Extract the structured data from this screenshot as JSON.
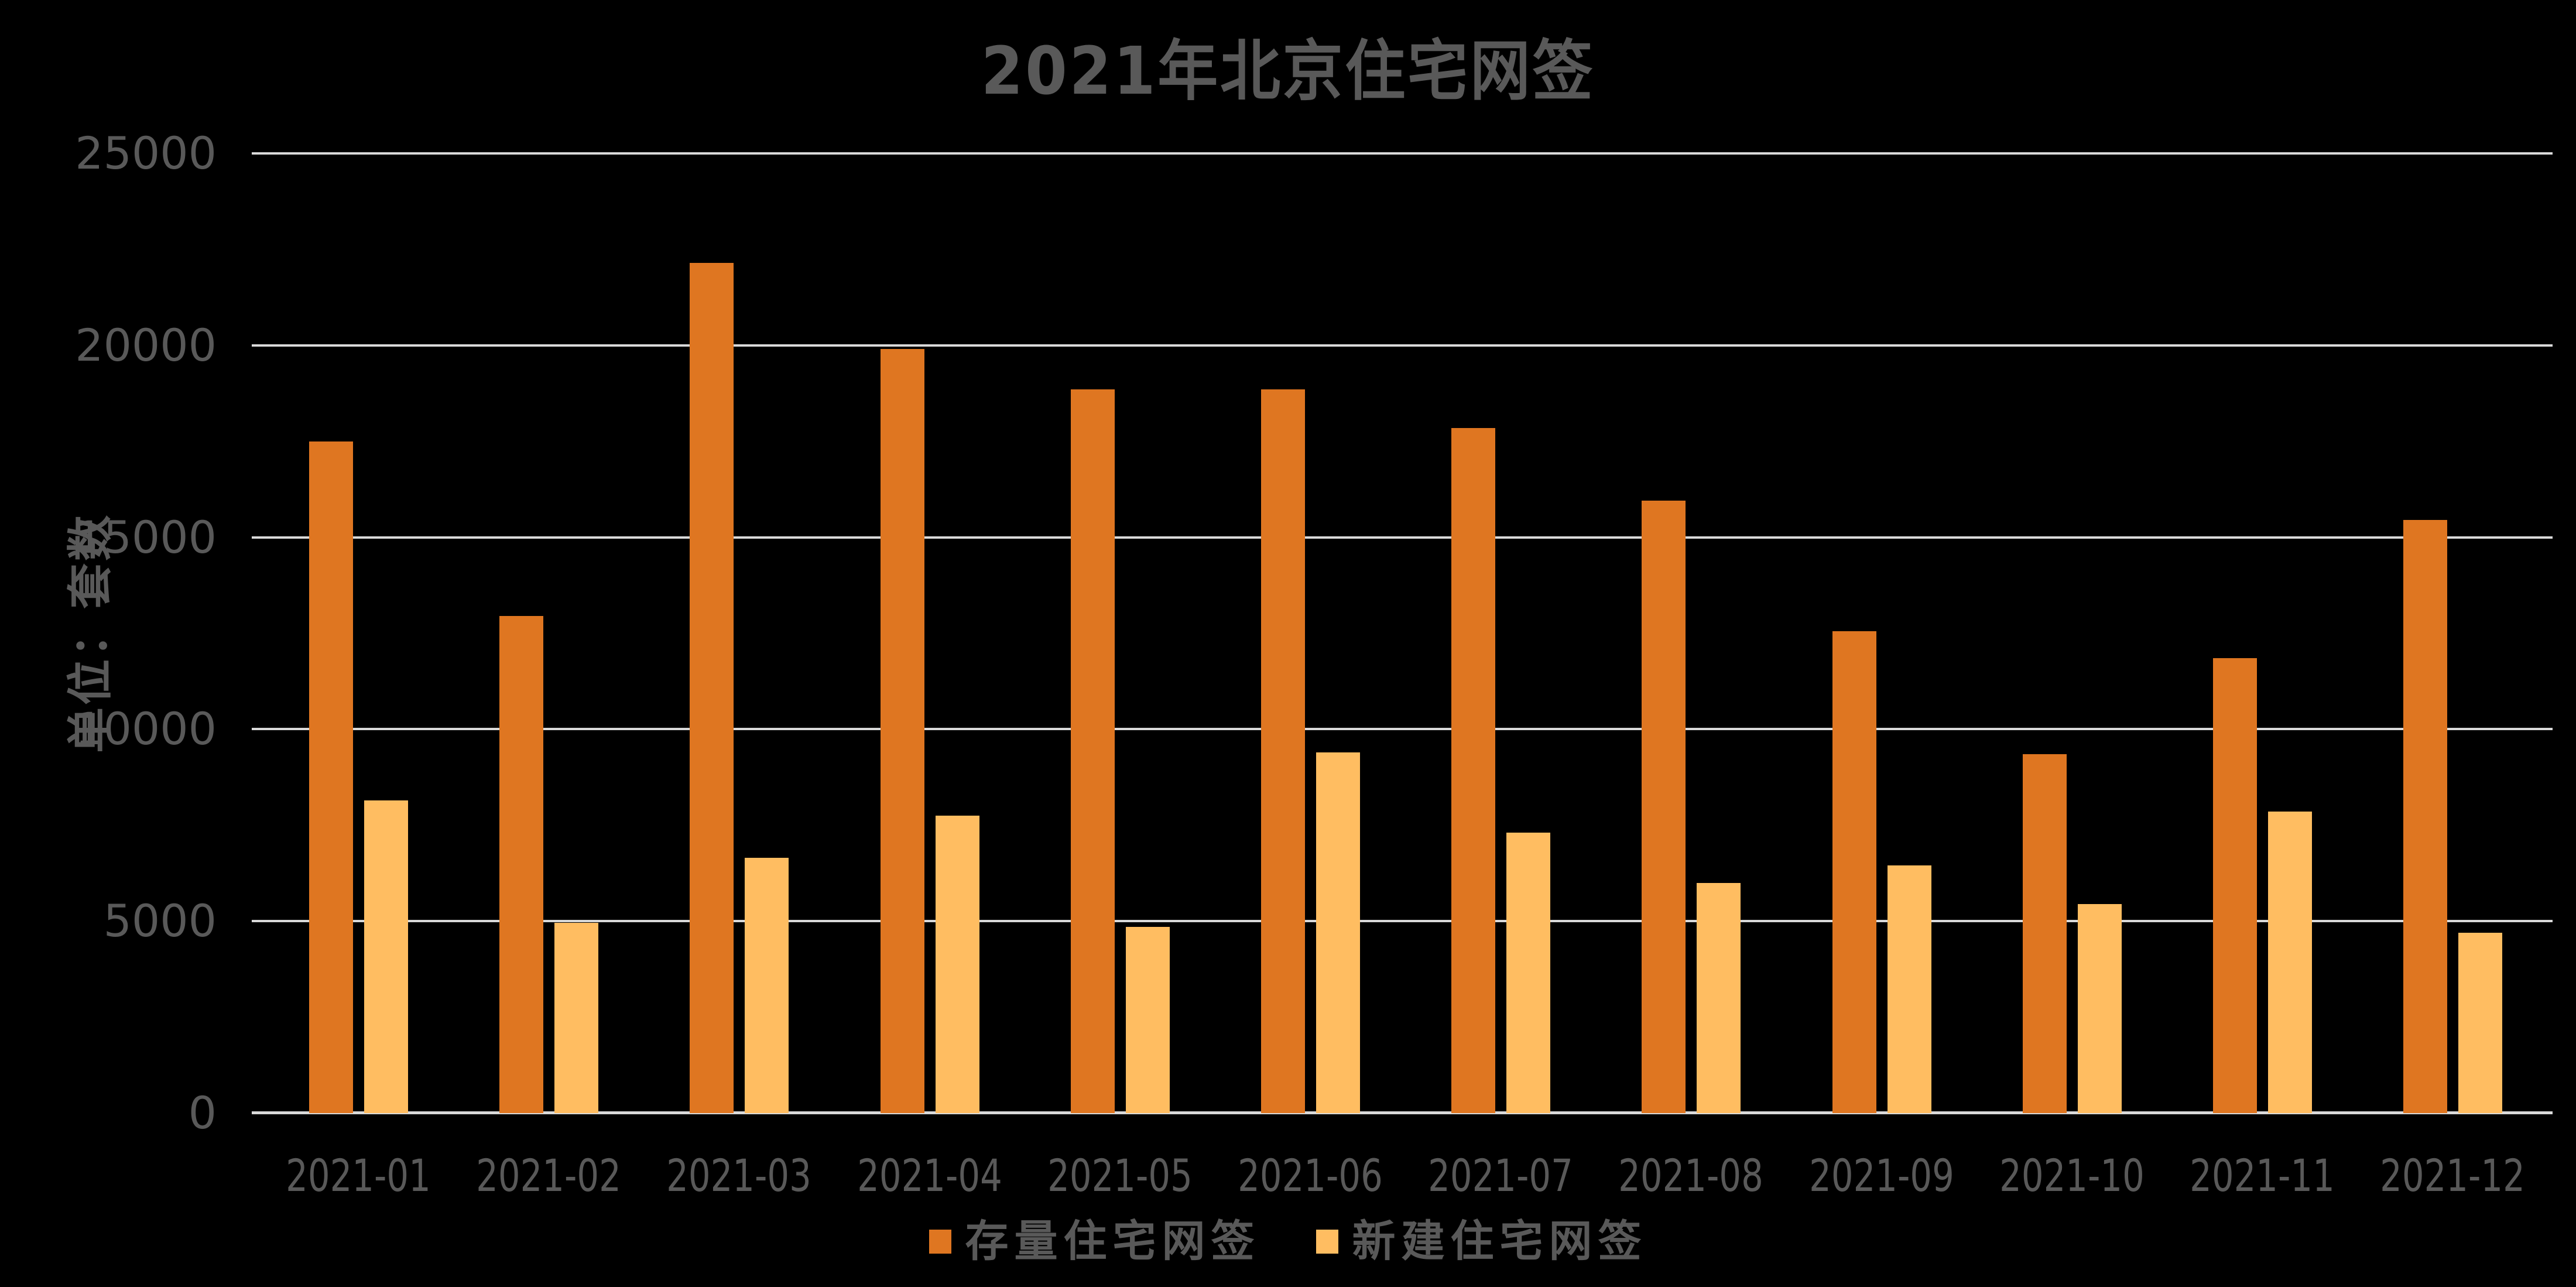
{
  "title": "2021年北京住宅网签",
  "colors": {
    "background": "#000000",
    "text": "#595959",
    "gridline": "#D9D9D9",
    "series_existing": "#DF7621",
    "series_new": "#FFBD61"
  },
  "chart_data": {
    "type": "bar",
    "title": "2021年北京住宅网签",
    "xlabel": "",
    "ylabel": "单位：套数",
    "categories": [
      "2021-01",
      "2021-02",
      "2021-03",
      "2021-04",
      "2021-05",
      "2021-06",
      "2021-07",
      "2021-08",
      "2021-09",
      "2021-10",
      "2021-11",
      "2021-12"
    ],
    "series": [
      {
        "name": "存量住宅网签",
        "color": "#DF7621",
        "values": [
          17500,
          12950,
          22150,
          19900,
          18850,
          18850,
          17850,
          15950,
          12550,
          9350,
          11850,
          15450
        ]
      },
      {
        "name": "新建住宅网签",
        "color": "#FFBD61",
        "values": [
          8150,
          4950,
          6650,
          7750,
          4850,
          9400,
          7300,
          6000,
          6450,
          5450,
          7850,
          4700
        ]
      }
    ],
    "ylim": [
      0,
      25000
    ],
    "yticks": [
      0,
      5000,
      10000,
      15000,
      20000,
      25000
    ],
    "grid": true,
    "gridline_color": "#D9D9D9",
    "background": "#000000",
    "legend_position": "bottom"
  }
}
